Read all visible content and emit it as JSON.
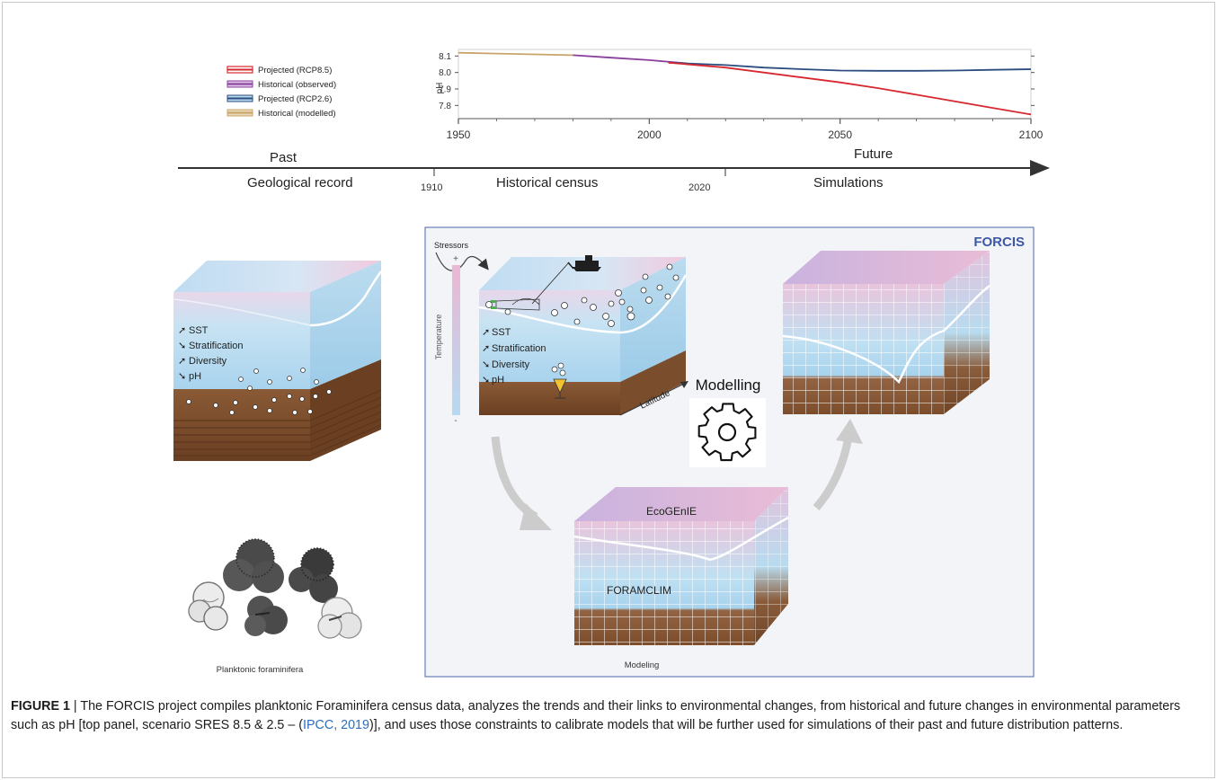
{
  "chart_data": {
    "type": "line",
    "ylabel": "pH",
    "x_ticks": [
      "1950",
      "2000",
      "2050",
      "2100"
    ],
    "y_ticks": [
      "8.1",
      "8.0",
      "7.9",
      "7.8"
    ],
    "xlim": [
      1950,
      2100
    ],
    "ylim": [
      7.72,
      8.14
    ],
    "legend": [
      "Projected (RCP8.5)",
      "Historical (observed)",
      "Projected (RCP2.6)",
      "Historical (modelled)"
    ],
    "legend_position": "left",
    "series": [
      {
        "name": "Historical (modelled)",
        "color": "#c8a46a",
        "x": [
          1950,
          1960,
          1970,
          1980
        ],
        "y": [
          8.12,
          8.115,
          8.11,
          8.105
        ]
      },
      {
        "name": "Historical (observed)",
        "color": "#8a3f9c",
        "x": [
          1980,
          1990,
          2000,
          2010
        ],
        "y": [
          8.105,
          8.09,
          8.075,
          8.055
        ]
      },
      {
        "name": "Projected (RCP2.6)",
        "color": "#2b4c7e",
        "x": [
          2005,
          2020,
          2030,
          2040,
          2050,
          2060,
          2070,
          2080,
          2090,
          2100
        ],
        "y": [
          8.06,
          8.045,
          8.03,
          8.02,
          8.012,
          8.01,
          8.01,
          8.012,
          8.016,
          8.02
        ]
      },
      {
        "name": "Projected (RCP8.5)",
        "color": "#d7282f",
        "x": [
          2005,
          2020,
          2030,
          2040,
          2050,
          2060,
          2070,
          2080,
          2090,
          2100
        ],
        "y": [
          8.06,
          8.03,
          8.0,
          7.97,
          7.94,
          7.905,
          7.865,
          7.825,
          7.785,
          7.745
        ]
      }
    ]
  },
  "timeline": {
    "past": "Past",
    "future": "Future",
    "geological": "Geological record",
    "y1910": "1910",
    "historical": "Historical census",
    "y2020": "2020",
    "simulations": "Simulations"
  },
  "left_block": {
    "items": [
      "SST",
      "Stratification",
      "Diversity",
      "pH"
    ],
    "caption": "Planktonic foraminifera"
  },
  "forcis": {
    "title": "FORCIS",
    "stressors": "Stressors",
    "items": [
      "SST",
      "Stratification",
      "Diversity",
      "pH"
    ],
    "temperature": "Temperature",
    "plus": "+",
    "minus": "-",
    "latitude": "Latitude",
    "modelling": "Modelling",
    "ecogenie": "EcoGEnIE",
    "foramclim": "FORAMCLIM",
    "modeling": "Modeling"
  },
  "caption": {
    "label": "FIGURE 1",
    "pre": " | The FORCIS project compiles planktonic Foraminifera census data, analyzes the trends and their links to environmental changes, from historical and future changes in environmental parameters such as pH [top panel, scenario SRES 8.5 & 2.5 – (",
    "cite": "IPCC, 2019",
    "post": ")], and uses those constraints to calibrate models that will be further used for simulations of their past and future distribution patterns."
  },
  "colors": {
    "ocean_top": "#c9e3f3",
    "ocean_pink": "#ecc8dd",
    "sediment": "#7a4d2d",
    "forcis_border": "#4c66a8",
    "forcis_title": "#3d59a6",
    "cite_link": "#2a6ebb"
  }
}
